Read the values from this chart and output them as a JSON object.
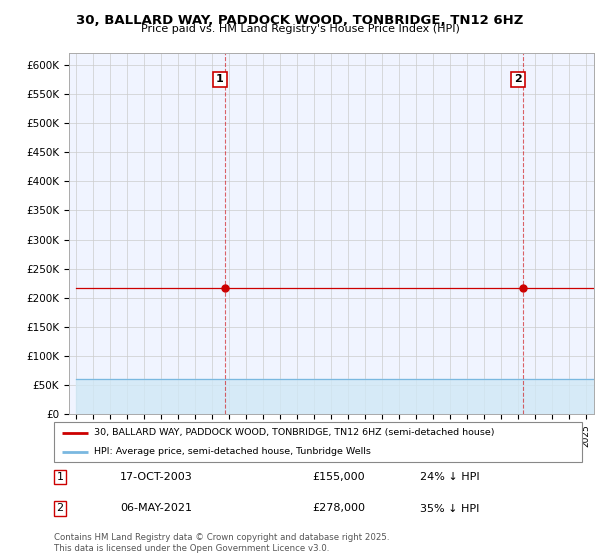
{
  "title": "30, BALLARD WAY, PADDOCK WOOD, TONBRIDGE, TN12 6HZ",
  "subtitle": "Price paid vs. HM Land Registry's House Price Index (HPI)",
  "ylim": [
    0,
    620000
  ],
  "yticks": [
    0,
    50000,
    100000,
    150000,
    200000,
    250000,
    300000,
    350000,
    400000,
    450000,
    500000,
    550000,
    600000
  ],
  "ytick_labels": [
    "£0",
    "£50K",
    "£100K",
    "£150K",
    "£200K",
    "£250K",
    "£300K",
    "£350K",
    "£400K",
    "£450K",
    "£500K",
    "£550K",
    "£600K"
  ],
  "hpi_color": "#7ab8e0",
  "hpi_fill_color": "#d0e8f5",
  "price_color": "#cc0000",
  "marker1_year": 2003.78,
  "marker1_price": 155000,
  "marker2_year": 2021.33,
  "marker2_price": 278000,
  "legend_line1": "30, BALLARD WAY, PADDOCK WOOD, TONBRIDGE, TN12 6HZ (semi-detached house)",
  "legend_line2": "HPI: Average price, semi-detached house, Tunbridge Wells",
  "footer": "Contains HM Land Registry data © Crown copyright and database right 2025.\nThis data is licensed under the Open Government Licence v3.0.",
  "background_color": "#ffffff",
  "grid_color": "#cccccc",
  "chart_bg": "#f0f4ff"
}
